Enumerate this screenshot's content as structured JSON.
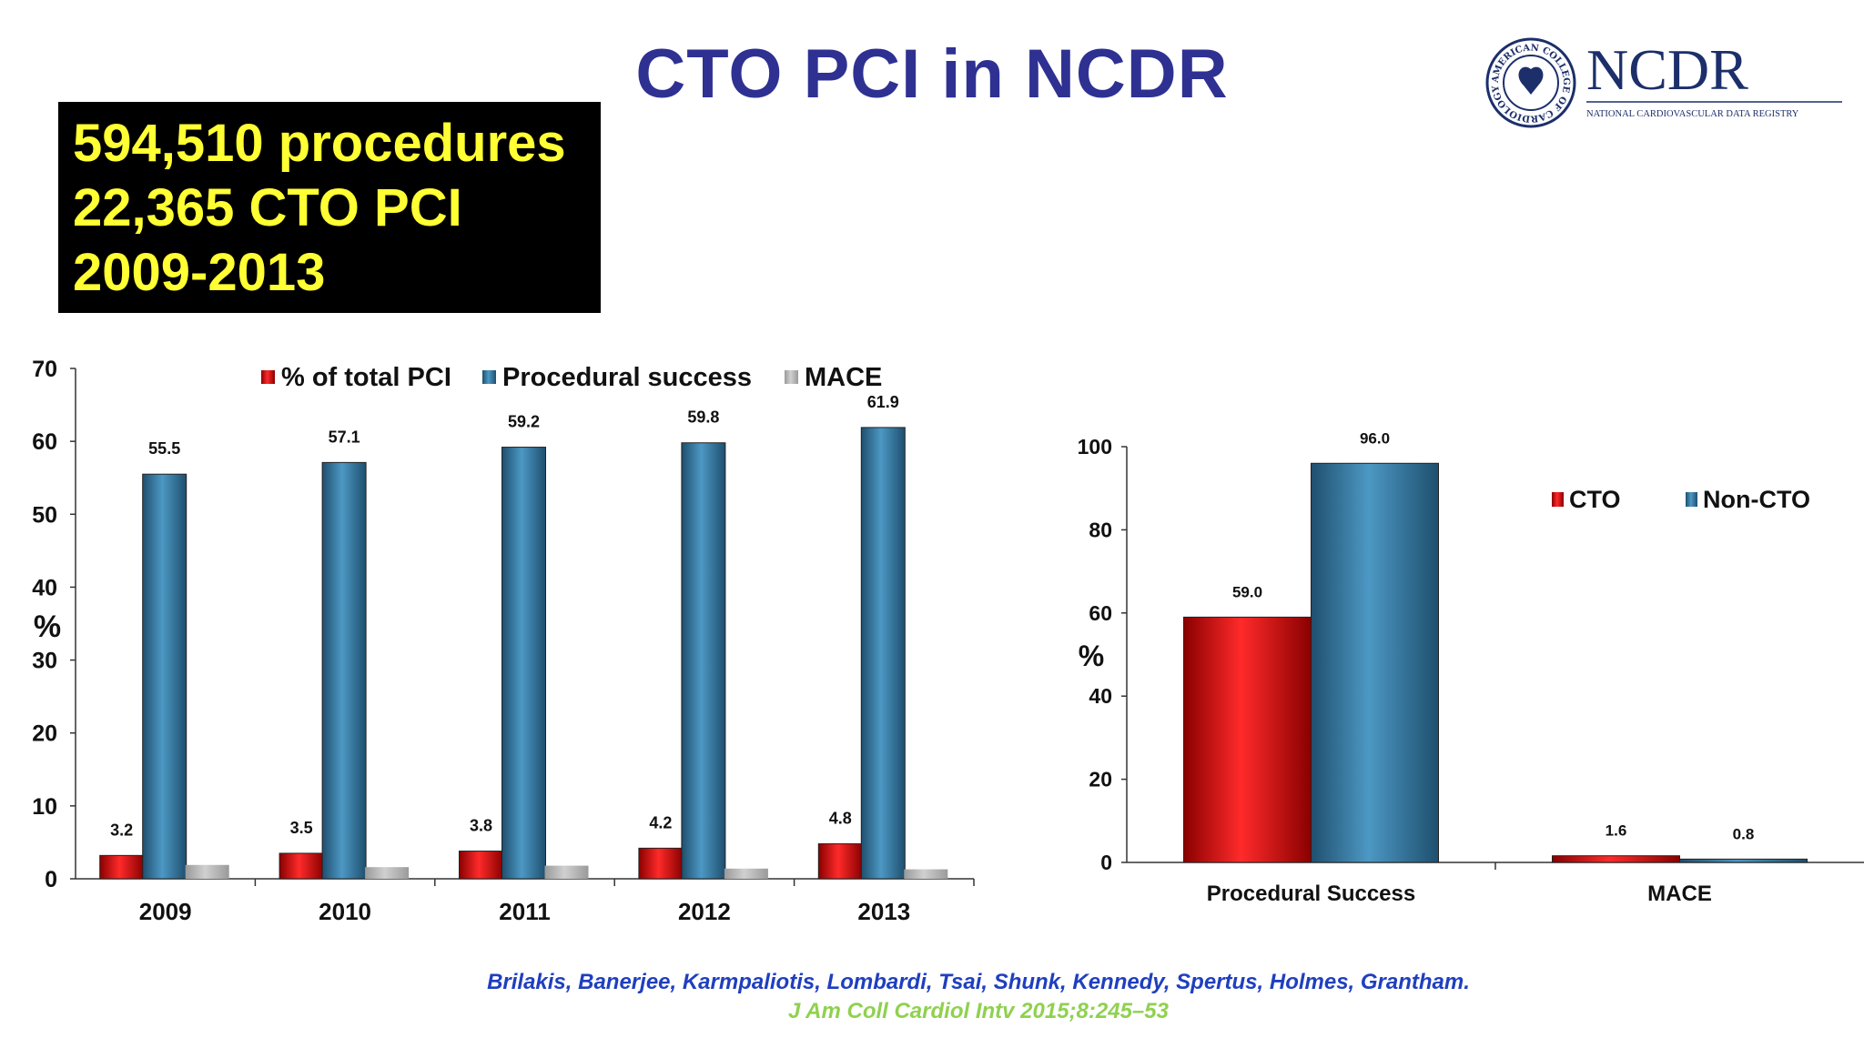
{
  "slide": {
    "title": "CTO PCI in NCDR",
    "highlights": [
      "594,510 procedures",
      "22,365 CTO PCI",
      "2009-2013"
    ],
    "citation_authors": "Brilakis, Banerjee, Karmpaliotis, Lombardi, Tsai, Shunk, Kennedy, Spertus, Holmes, Grantham.",
    "citation_journal": "J Am Coll Cardiol Intv 2015;8:245–53"
  },
  "logo": {
    "name": "NCDR",
    "subtitle": "NATIONAL CARDIOVASCULAR DATA REGISTRY",
    "seal_text": "AMERICAN COLLEGE OF CARDIOLOGY"
  },
  "colors": {
    "title": "#2e3192",
    "highlight_text": "#ffff33",
    "red_series": "#d10000",
    "blue_series": "#3a7ea6",
    "gray_series": "#b3b3b3",
    "citation_authors": "#1f3fbf",
    "citation_journal": "#8fd14f"
  },
  "chart_data": [
    {
      "type": "bar",
      "categories": [
        "2009",
        "2010",
        "2011",
        "2012",
        "2013"
      ],
      "series": [
        {
          "name": "% of total PCI",
          "values": [
            3.2,
            3.5,
            3.8,
            4.2,
            4.8
          ],
          "labels": [
            "3.2",
            "3.5",
            "3.8",
            "4.2",
            "4.8"
          ]
        },
        {
          "name": "Procedural success",
          "values": [
            55.5,
            57.1,
            59.2,
            59.8,
            61.9
          ],
          "labels": [
            "55.5",
            "57.1",
            "59.2",
            "59.8",
            "61.9"
          ]
        },
        {
          "name": "MACE",
          "values": [
            1.9,
            1.6,
            1.8,
            1.4,
            1.3
          ],
          "labels": []
        }
      ],
      "ylabel": "%",
      "ylim": [
        0,
        70
      ],
      "yticks": [
        "0",
        "10",
        "20",
        "30",
        "40",
        "50",
        "60",
        "70"
      ],
      "legend": "top",
      "grid": false
    },
    {
      "type": "bar",
      "categories": [
        "Procedural Success",
        "MACE"
      ],
      "series": [
        {
          "name": "CTO",
          "values": [
            59.0,
            1.6
          ],
          "labels": [
            "59.0",
            "1.6"
          ]
        },
        {
          "name": "Non-CTO",
          "values": [
            96.0,
            0.8
          ],
          "labels": [
            "96.0",
            "0.8"
          ]
        }
      ],
      "ylabel": "%",
      "ylim": [
        0,
        100
      ],
      "yticks": [
        "0",
        "20",
        "40",
        "60",
        "80",
        "100"
      ],
      "legend": "top-right",
      "grid": false
    }
  ]
}
